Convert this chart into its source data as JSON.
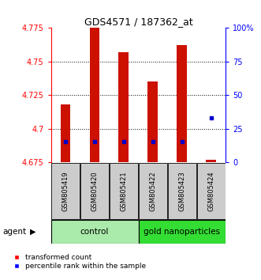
{
  "title": "GDS4571 / 187362_at",
  "samples": [
    "GSM805419",
    "GSM805420",
    "GSM805421",
    "GSM805422",
    "GSM805423",
    "GSM805424"
  ],
  "group_labels": [
    "control",
    "gold nanoparticles"
  ],
  "group_colors": [
    "#aaeaaa",
    "#33dd33"
  ],
  "bar_bottoms": [
    4.675,
    4.675,
    4.675,
    4.675,
    4.675,
    4.675
  ],
  "bar_tops": [
    4.718,
    4.775,
    4.757,
    4.735,
    4.762,
    4.677
  ],
  "percentile_values": [
    4.6905,
    4.6905,
    4.6905,
    4.6905,
    4.6905,
    4.708
  ],
  "ylim_left": [
    4.675,
    4.775
  ],
  "ylim_right": [
    0,
    100
  ],
  "yticks_left": [
    4.675,
    4.7,
    4.725,
    4.75,
    4.775
  ],
  "ytick_labels_left": [
    "4.675",
    "4.7",
    "4.725",
    "4.75",
    "4.775"
  ],
  "yticks_right": [
    0,
    25,
    50,
    75,
    100
  ],
  "ytick_labels_right": [
    "0",
    "25",
    "50",
    "75",
    "100%"
  ],
  "bar_color": "#cc1100",
  "percentile_color": "#0000cc",
  "sample_box_color": "#cccccc",
  "figsize": [
    3.31,
    3.54
  ],
  "dpi": 100
}
